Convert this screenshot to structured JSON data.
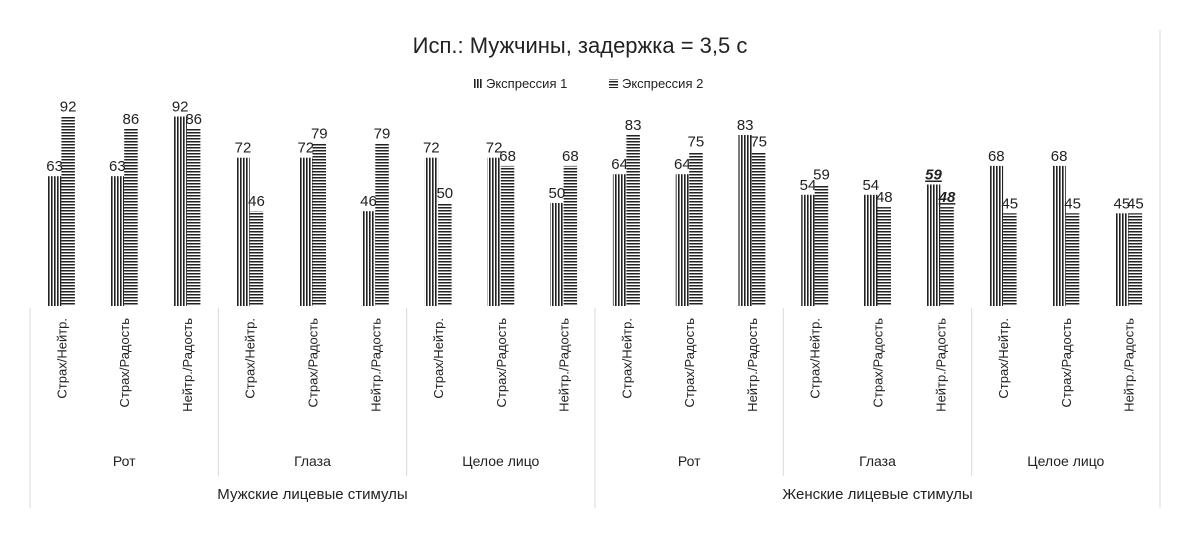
{
  "chart_data": {
    "type": "bar",
    "title": "Исп.: Мужчины, задержка = 3,5 с",
    "legend_position": "top",
    "series": [
      {
        "name": "Экспрессия 1",
        "pattern": "vertical-stripes",
        "values": [
          63,
          63,
          92,
          72,
          72,
          46,
          72,
          72,
          50,
          64,
          64,
          83,
          54,
          54,
          59,
          68,
          68,
          45
        ]
      },
      {
        "name": "Экспрессия 2",
        "pattern": "horizontal-stripes",
        "values": [
          92,
          86,
          86,
          46,
          79,
          79,
          50,
          68,
          68,
          83,
          75,
          75,
          59,
          48,
          48,
          45,
          45,
          45
        ]
      }
    ],
    "categories": [
      "Страх/Нейтр.",
      "Страх/Радость",
      "Нейтр./Радость",
      "Страх/Нейтр.",
      "Страх/Радость",
      "Нейтр./Радость",
      "Страх/Нейтр.",
      "Страх/Радость",
      "Нейтр./Радость",
      "Страх/Нейтр.",
      "Страх/Радость",
      "Нейтр./Радость",
      "Страх/Нейтр.",
      "Страх/Радость",
      "Нейтр./Радость",
      "Страх/Нейтр.",
      "Страх/Радость",
      "Нейтр./Радость"
    ],
    "groups": [
      "Рот",
      "Глаза",
      "Целое лицо",
      "Рот",
      "Глаза",
      "Целое лицо"
    ],
    "supergroups": [
      "Мужские лицевые стимулы",
      "Женские лицевые стимулы"
    ],
    "emphasized": [
      {
        "category_index": 14,
        "series": [
          0,
          1
        ]
      }
    ],
    "ylim": [
      0,
      100
    ],
    "grid": false,
    "bar_color": "#222222"
  }
}
